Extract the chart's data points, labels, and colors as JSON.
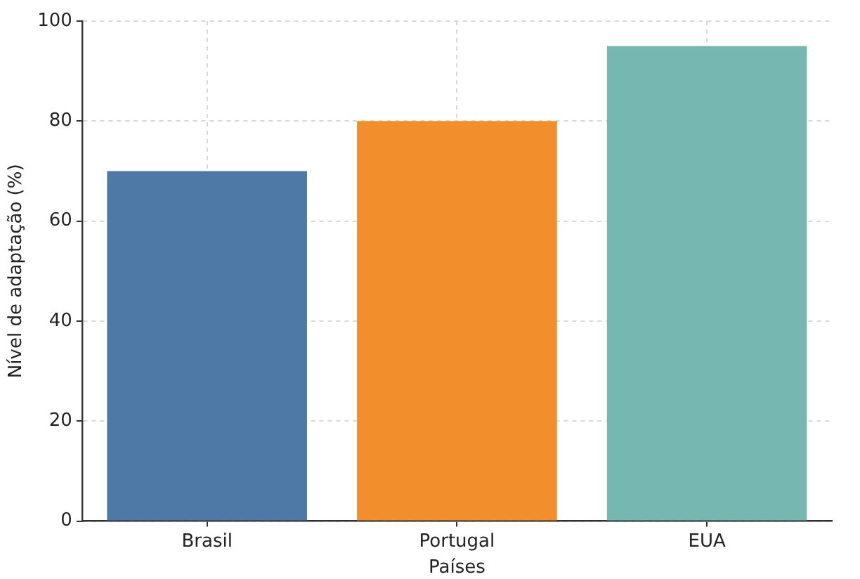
{
  "chart_data": {
    "type": "bar",
    "xlabel": "Países",
    "ylabel": "Nível de adaptação (%)",
    "categories": [
      "Brasil",
      "Portugal",
      "EUA"
    ],
    "values": [
      70,
      80,
      95
    ],
    "colors": [
      "#4e79a7",
      "#f28e2b",
      "#76b7b2"
    ],
    "ylim": [
      0,
      100
    ],
    "yticks": [
      0,
      20,
      40,
      60,
      80,
      100
    ],
    "grid": true
  }
}
